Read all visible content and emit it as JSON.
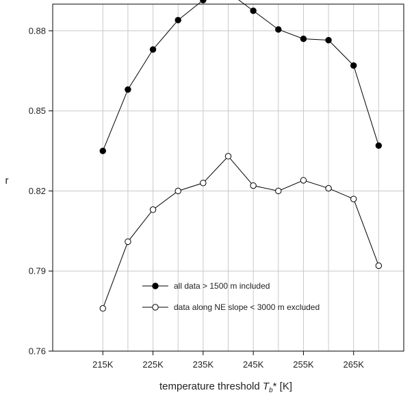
{
  "chart_data": {
    "type": "line",
    "title": "",
    "xlabel": {
      "prefix": "temperature threshold ",
      "var": "T",
      "sub": "b",
      "suffix": "* [K]"
    },
    "ylabel": "r",
    "x": [
      215,
      220,
      225,
      230,
      235,
      240,
      245,
      250,
      255,
      260,
      265,
      270
    ],
    "xticks": [
      215,
      225,
      235,
      245,
      255,
      265
    ],
    "xtick_labels": [
      "215K",
      "225K",
      "235K",
      "245K",
      "255K",
      "265K"
    ],
    "xlim": [
      205,
      275
    ],
    "ylim": [
      0.76,
      0.89
    ],
    "yticks": [
      0.76,
      0.79,
      0.82,
      0.85,
      0.88
    ],
    "ytick_labels": [
      "0.76",
      "0.79",
      "0.82",
      "0.85",
      "0.88"
    ],
    "grid": true,
    "legend_position": "bottom-center",
    "series": [
      {
        "name": "all data > 1500 m included",
        "marker": "filled-circle",
        "values": [
          0.835,
          0.858,
          0.873,
          0.884,
          0.8915,
          0.8945,
          0.8875,
          0.8805,
          0.877,
          0.8765,
          0.867,
          0.837
        ]
      },
      {
        "name": "data along NE slope < 3000 m excluded",
        "marker": "open-circle",
        "values": [
          0.776,
          0.801,
          0.813,
          0.82,
          0.823,
          0.833,
          0.822,
          0.82,
          0.824,
          0.821,
          0.817,
          0.792
        ]
      }
    ]
  },
  "colors": {
    "line": "#000000",
    "grid": "#c8c8c8",
    "open_fill": "#ffffff"
  }
}
